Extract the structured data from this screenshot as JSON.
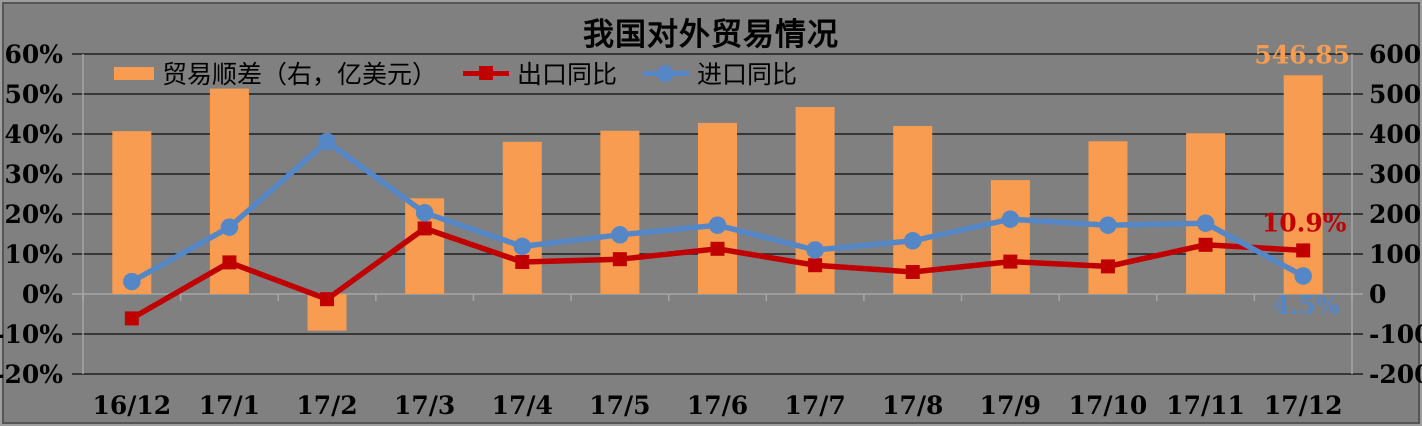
{
  "title": "我国对外贸易情况",
  "legend": [
    {
      "label": "贸易顺差（右，亿美元）",
      "swatch": "bar",
      "color_key": "bar"
    },
    {
      "label": "出口同比",
      "swatch": "line-square",
      "color_key": "export"
    },
    {
      "label": "进口同比",
      "swatch": "line-circle",
      "color_key": "import"
    }
  ],
  "colors": {
    "background": "#808080",
    "frame_outer": "#9E9E9E",
    "frame_inner": "#565656",
    "gridline": "#1F1F1F",
    "axis_light": "#A6A6A6",
    "text": "#000000",
    "bar": "#F79C50",
    "export": "#C00000",
    "import": "#5587C6"
  },
  "chart_data": {
    "type": "bar",
    "subtype": "bar+line combo, dual axis",
    "title": "我国对外贸易情况",
    "categories": [
      "16/12",
      "17/1",
      "17/2",
      "17/3",
      "17/4",
      "17/5",
      "17/6",
      "17/7",
      "17/8",
      "17/9",
      "17/10",
      "17/11",
      "17/12"
    ],
    "series": [
      {
        "name": "贸易顺差（右，亿美元）",
        "type": "bar",
        "axis": "right",
        "unit": "亿美元",
        "color_key": "bar",
        "values": [
          407.1,
          513.5,
          -91.5,
          239.3,
          380.5,
          408.1,
          427.7,
          467.4,
          419.9,
          284.7,
          381.9,
          402.1,
          546.85
        ]
      },
      {
        "name": "出口同比",
        "type": "line",
        "marker": "square",
        "axis": "left",
        "unit": "%",
        "color_key": "export",
        "values": [
          -6.1,
          7.9,
          -1.3,
          16.4,
          8.0,
          8.7,
          11.3,
          7.2,
          5.5,
          8.1,
          6.9,
          12.3,
          10.9
        ]
      },
      {
        "name": "进口同比",
        "type": "line",
        "marker": "circle",
        "axis": "left",
        "unit": "%",
        "color_key": "import",
        "values": [
          3.1,
          16.7,
          38.1,
          20.3,
          11.9,
          14.8,
          17.2,
          11.0,
          13.3,
          18.7,
          17.2,
          17.7,
          4.5
        ]
      }
    ],
    "left_axis": {
      "labels": [
        "60%",
        "50%",
        "40%",
        "30%",
        "20%",
        "10%",
        "0%",
        "-10%",
        "-20%"
      ],
      "tick_values": [
        60,
        50,
        40,
        30,
        20,
        10,
        0,
        -10,
        -20
      ],
      "min": -20,
      "max": 60
    },
    "right_axis": {
      "labels": [
        "600",
        "500",
        "400",
        "300",
        "200",
        "100",
        "0",
        "-100",
        "-200"
      ],
      "tick_values": [
        600,
        500,
        400,
        300,
        200,
        100,
        0,
        -100,
        -200
      ],
      "min": -200,
      "max": 600
    },
    "annotations": [
      {
        "text": "546.85",
        "series": "贸易顺差（右，亿美元）",
        "category": "17/12",
        "color_key": "bar"
      },
      {
        "text": "10.9%",
        "series": "出口同比",
        "category": "17/12",
        "color_key": "export"
      },
      {
        "text": "4.5%",
        "series": "进口同比",
        "category": "17/12",
        "color_key": "import"
      }
    ],
    "grid": true,
    "legend_position": "top-inside"
  }
}
